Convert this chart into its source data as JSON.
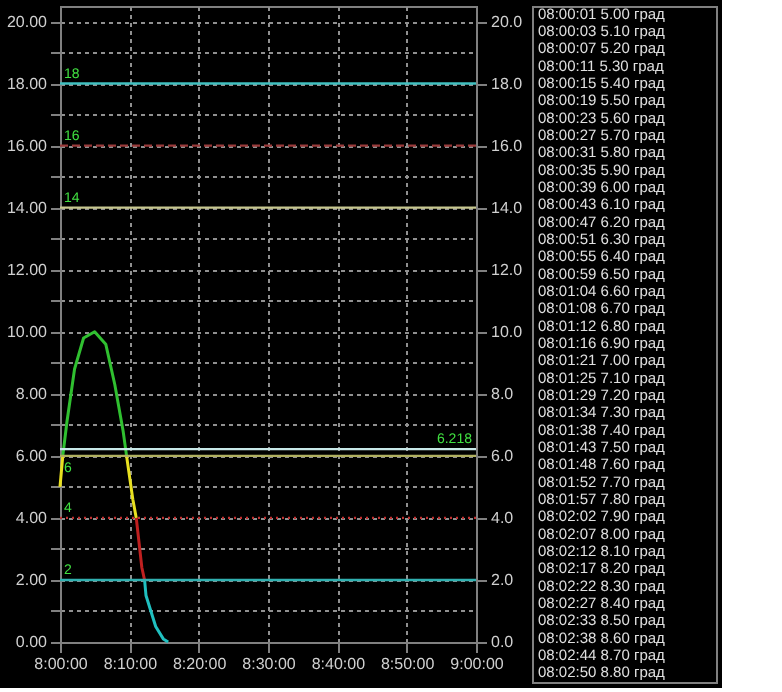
{
  "chart_data": {
    "type": "line",
    "xlim": [
      8,
      9
    ],
    "xticks": [
      {
        "value": 8,
        "label": "8:00:00"
      },
      {
        "value": 8.1667,
        "label": "8:10:00"
      },
      {
        "value": 8.3333,
        "label": "8:20:00"
      },
      {
        "value": 8.5,
        "label": "8:30:00"
      },
      {
        "value": 8.6667,
        "label": "8:40:00"
      },
      {
        "value": 8.8333,
        "label": "8:50:00"
      },
      {
        "value": 9,
        "label": "9:00:00"
      }
    ],
    "ylim": [
      0,
      20.5
    ],
    "yticks": [
      {
        "value": 0,
        "label": "0.00"
      },
      {
        "value": 1,
        "label": null
      },
      {
        "value": 2,
        "label": "2.00"
      },
      {
        "value": 3,
        "label": null
      },
      {
        "value": 4,
        "label": "4.00"
      },
      {
        "value": 5,
        "label": null
      },
      {
        "value": 6,
        "label": "6.00"
      },
      {
        "value": 7,
        "label": null
      },
      {
        "value": 8,
        "label": "8.00"
      },
      {
        "value": 9,
        "label": null
      },
      {
        "value": 10,
        "label": "10.00"
      },
      {
        "value": 11,
        "label": null
      },
      {
        "value": 12,
        "label": "12.00"
      },
      {
        "value": 13,
        "label": null
      },
      {
        "value": 14,
        "label": "14.00"
      },
      {
        "value": 15,
        "label": null
      },
      {
        "value": 16,
        "label": "16.00"
      },
      {
        "value": 17,
        "label": null
      },
      {
        "value": 18,
        "label": "18.00"
      },
      {
        "value": 19,
        "label": null
      },
      {
        "value": 20,
        "label": "20.00"
      }
    ],
    "y2lim": [
      0,
      20.5
    ],
    "y2ticks": [
      {
        "value": 0,
        "label": "0.0"
      },
      {
        "value": 2,
        "label": "2.0"
      },
      {
        "value": 4,
        "label": "4.0"
      },
      {
        "value": 6,
        "label": "6.0"
      },
      {
        "value": 8,
        "label": "8.0"
      },
      {
        "value": 10,
        "label": "10.0"
      },
      {
        "value": 12,
        "label": "12.0"
      },
      {
        "value": 14,
        "label": "14.0"
      },
      {
        "value": 16,
        "label": "16.0"
      },
      {
        "value": 18,
        "label": "18.0"
      },
      {
        "value": 20,
        "label": "20.0"
      }
    ],
    "grid": true,
    "series": [
      {
        "color": "#e8e020",
        "x": [
          8.0,
          8.0067
        ],
        "values": [
          5.0,
          6.0
        ]
      },
      {
        "color": "#30c030",
        "x": [
          8.0067,
          8.0167,
          8.035,
          8.0567,
          8.0833,
          8.11,
          8.1317,
          8.1517,
          8.16
        ],
        "values": [
          6.0,
          7.1,
          8.8,
          9.8,
          10.0,
          9.6,
          8.3,
          6.8,
          6.0
        ]
      },
      {
        "color": "#e8e020",
        "x": [
          8.16,
          8.175,
          8.1833
        ],
        "values": [
          6.0,
          4.6,
          4.0
        ]
      },
      {
        "color": "#c02020",
        "x": [
          8.1833,
          8.1967,
          8.2033
        ],
        "values": [
          4.0,
          2.4,
          2.0
        ]
      },
      {
        "color": "#20c0c0",
        "x": [
          8.2033,
          8.2067,
          8.23,
          8.2483,
          8.26
        ],
        "values": [
          2.0,
          1.5,
          0.5,
          0.1,
          0.0
        ]
      }
    ],
    "ref_lines": [
      {
        "axis": "y",
        "value": 18,
        "label": "18",
        "color": "#40c0c0",
        "line_style": "solid"
      },
      {
        "axis": "y",
        "value": 16,
        "label": "16",
        "color": "#9a3a3a",
        "line_style": "dashed"
      },
      {
        "axis": "y",
        "value": 14,
        "label": "14",
        "color": "#c8c890",
        "line_style": "solid"
      },
      {
        "axis": "y",
        "value": 6.218,
        "label": "6.218",
        "color": "#c8e8e8",
        "line_style": "solid"
      },
      {
        "axis": "y",
        "value": 6,
        "label": "6",
        "color": "#b0b060",
        "line_style": "solid"
      },
      {
        "axis": "y",
        "value": 4,
        "label": "4",
        "color": "#c03030",
        "line_style": "dotted"
      },
      {
        "axis": "y",
        "value": 2,
        "label": "2",
        "color": "#30b0b0",
        "line_style": "solid"
      }
    ],
    "annotations": [
      "08:00:01 5.00 град",
      "08:00:03 5.10 град",
      "08:00:07 5.20 град",
      "08:00:11 5.30 град",
      "08:00:15 5.40 град",
      "08:00:19 5.50 град",
      "08:00:23 5.60 град",
      "08:00:27 5.70 град",
      "08:00:31 5.80 град",
      "08:00:35 5.90 град",
      "08:00:39 6.00 град",
      "08:00:43 6.10 град",
      "08:00:47 6.20 град",
      "08:00:51 6.30 град",
      "08:00:55 6.40 град",
      "08:00:59 6.50 град",
      "08:01:04 6.60 град",
      "08:01:08 6.70 град",
      "08:01:12 6.80 град",
      "08:01:16 6.90 град",
      "08:01:21 7.00 град",
      "08:01:25 7.10 град",
      "08:01:29 7.20 град",
      "08:01:34 7.30 град",
      "08:01:38 7.40 град",
      "08:01:43 7.50 град",
      "08:01:48 7.60 град",
      "08:01:52 7.70 град",
      "08:01:57 7.80 град",
      "08:02:02 7.90 град",
      "08:02:07 8.00 град",
      "08:02:12 8.10 град",
      "08:02:17 8.20 град",
      "08:02:22 8.30 град",
      "08:02:27 8.40 град",
      "08:02:33 8.50 град",
      "08:02:38 8.60 град",
      "08:02:44 8.70 град",
      "08:02:50 8.80 град"
    ]
  }
}
